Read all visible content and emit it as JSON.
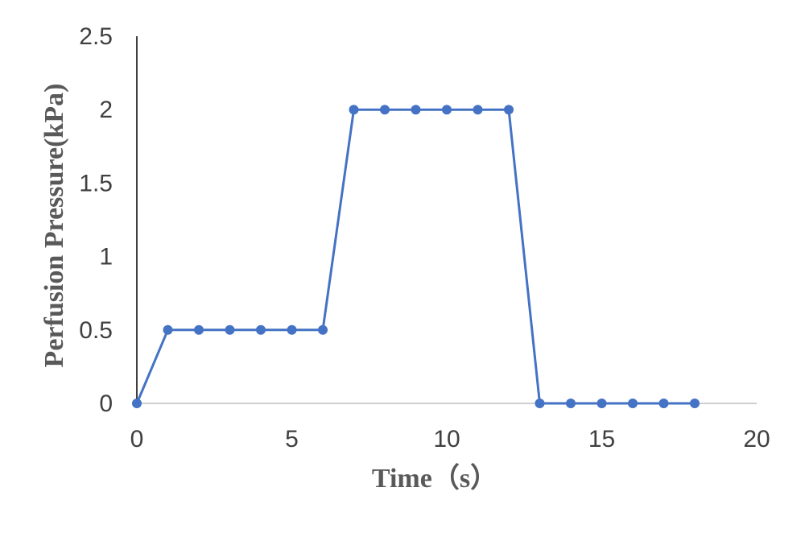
{
  "chart_data": {
    "type": "line",
    "title": "",
    "xlabel": "Time（s）",
    "ylabel": "Perfusion Pressure(kPa)",
    "xlim": [
      0,
      20
    ],
    "ylim": [
      0,
      2.5
    ],
    "x_ticks": [
      "0",
      "5",
      "10",
      "15",
      "20"
    ],
    "y_ticks": [
      "0",
      "0.5",
      "1",
      "1.5",
      "2",
      "2.5"
    ],
    "grid": false,
    "legend": "none",
    "series": [
      {
        "color": "#4472c4",
        "x": [
          0,
          1,
          2,
          3,
          4,
          5,
          6,
          7,
          8,
          9,
          10,
          11,
          12,
          13,
          14,
          15,
          16,
          17,
          18
        ],
        "y": [
          0,
          0.5,
          0.5,
          0.5,
          0.5,
          0.5,
          0.5,
          2,
          2,
          2,
          2,
          2,
          2,
          0,
          0,
          0,
          0,
          0,
          0
        ]
      }
    ]
  }
}
